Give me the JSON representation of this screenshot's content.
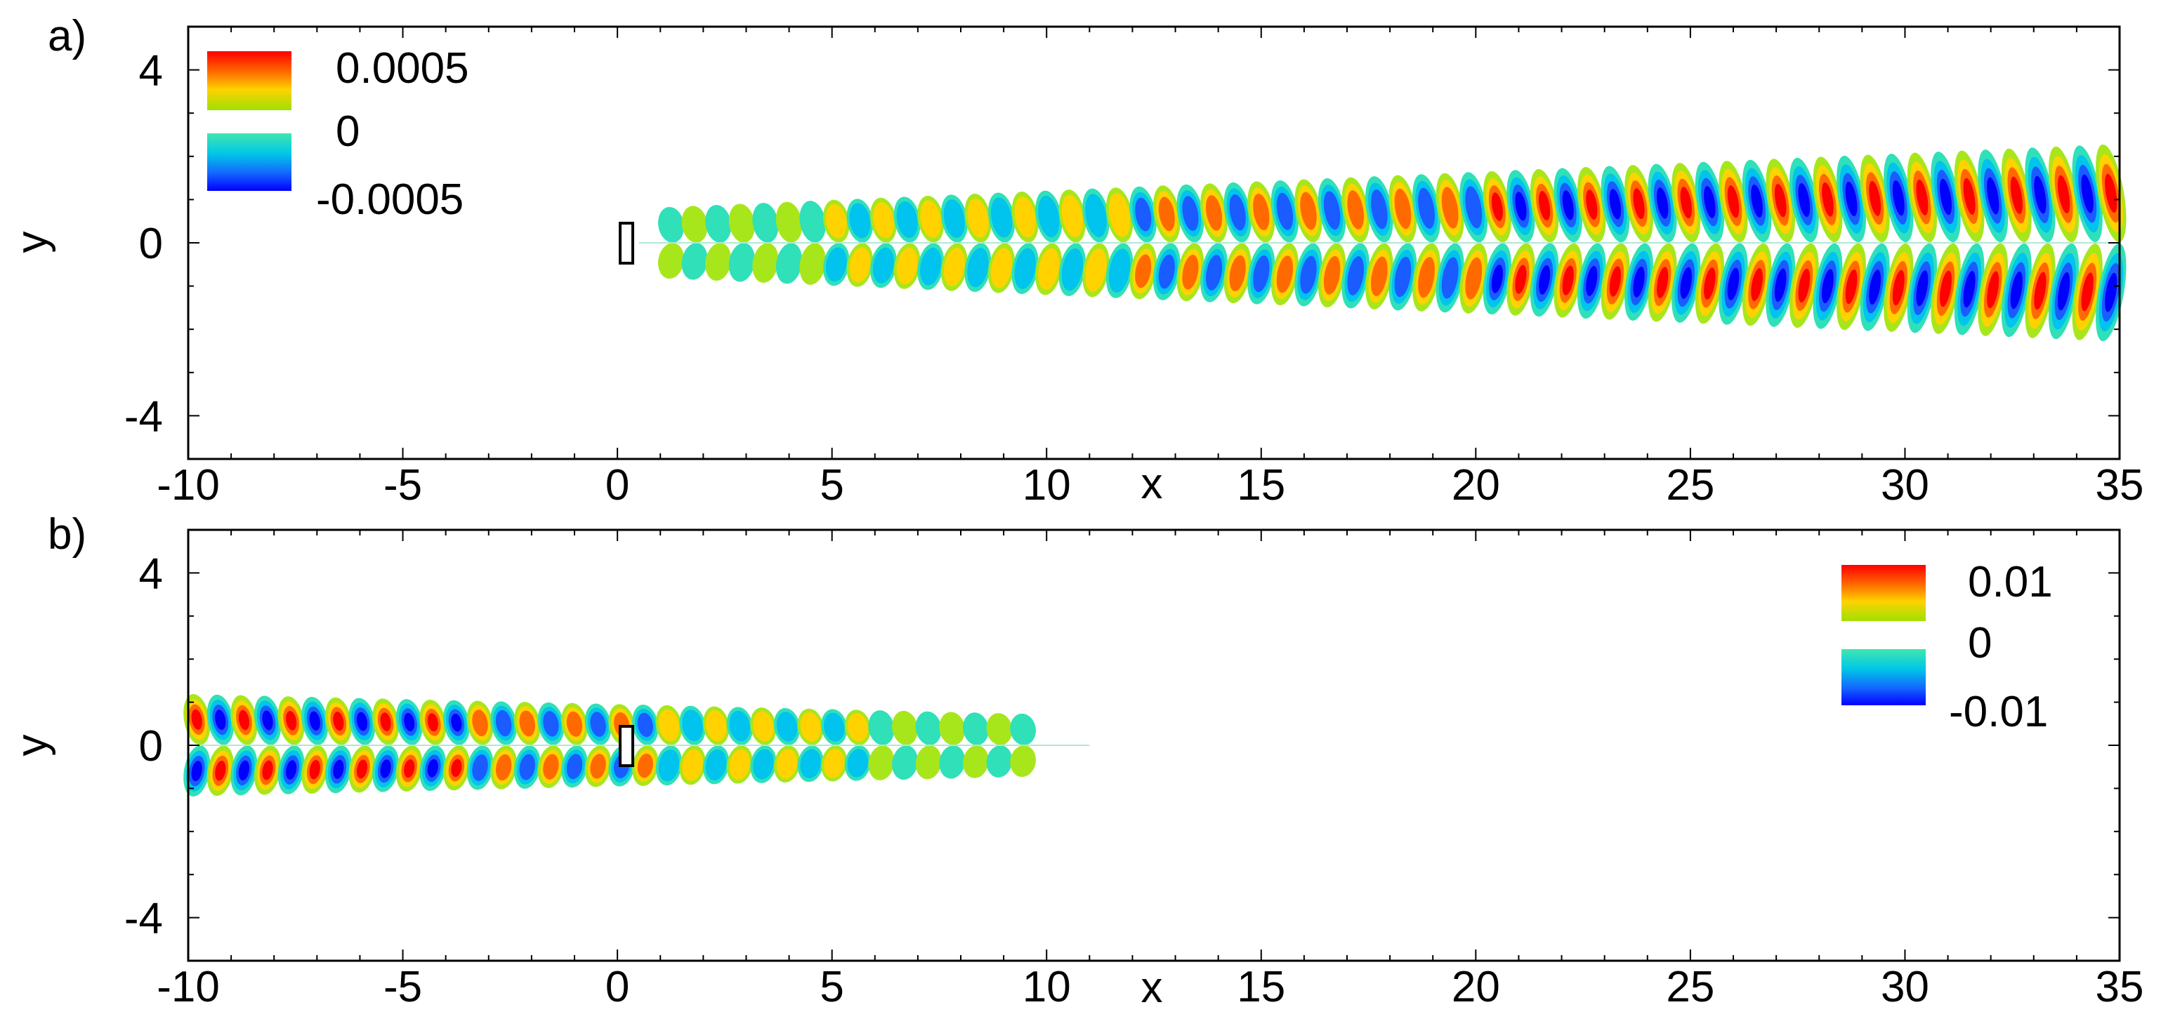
{
  "chart_data": [
    {
      "type": "heatmap",
      "panel_label": "a)",
      "xlabel": "x",
      "ylabel": "y",
      "xlim": [
        -10,
        35
      ],
      "ylim": [
        -5,
        5
      ],
      "x_ticks": [
        -10,
        -5,
        0,
        5,
        10,
        15,
        20,
        25,
        30,
        35
      ],
      "y_ticks": [
        -4,
        0,
        4
      ],
      "x_tick_labels": [
        "-10",
        "-5",
        "0",
        "5",
        "10",
        "15",
        "20",
        "25",
        "30",
        "35"
      ],
      "y_tick_labels": [
        "-4",
        "0",
        "4"
      ],
      "grid": false,
      "legend": {
        "placement": "top-left",
        "labels": [
          "0.0005",
          "0",
          "-0.0005"
        ],
        "values": [
          0.0005,
          0,
          -0.0005
        ]
      },
      "body": {
        "x_range": [
          0.2,
          0.5
        ],
        "y_range": [
          -0.5,
          0.5
        ]
      },
      "field": {
        "pattern": "wavepacket growing downstream",
        "x_start": 0.5,
        "x_end": 35,
        "wavelength": 1.1,
        "amplitude_scale": 0.0005,
        "peak_location": "x=35",
        "half_width_at_x_start": 0.8,
        "half_width_at_x_end": 2.3
      }
    },
    {
      "type": "heatmap",
      "panel_label": "b)",
      "xlabel": "x",
      "ylabel": "y",
      "xlim": [
        -10,
        35
      ],
      "ylim": [
        -5,
        5
      ],
      "x_ticks": [
        -10,
        -5,
        0,
        5,
        10,
        15,
        20,
        25,
        30,
        35
      ],
      "y_ticks": [
        -4,
        0,
        4
      ],
      "x_tick_labels": [
        "-10",
        "-5",
        "0",
        "5",
        "10",
        "15",
        "20",
        "25",
        "30",
        "35"
      ],
      "y_tick_labels": [
        "-4",
        "0",
        "4"
      ],
      "grid": false,
      "legend": {
        "placement": "top-right",
        "labels": [
          "0.01",
          "0",
          "-0.01"
        ],
        "values": [
          0.01,
          0,
          -0.01
        ]
      },
      "body": {
        "x_range": [
          0.2,
          0.5
        ],
        "y_range": [
          -0.5,
          0.5
        ]
      },
      "field": {
        "pattern": "wavepacket decaying downstream",
        "x_start": -10,
        "x_end": 11,
        "wavelength": 1.1,
        "amplitude_scale": 0.01,
        "peak_location": "x=-10",
        "half_width_at_x_start": 1.2,
        "half_width_at_x_end": 0.7
      }
    }
  ]
}
